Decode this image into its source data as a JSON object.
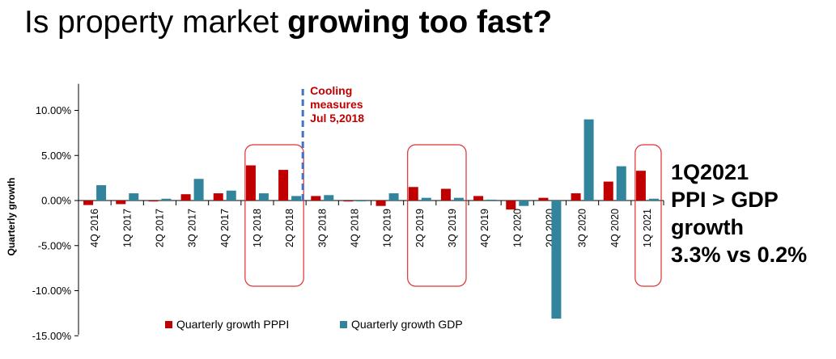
{
  "title": {
    "part1": "Is property market ",
    "part2": "growing too fast?"
  },
  "side_note": {
    "line1": "1Q2021",
    "line2": "PPI > GDP",
    "line3": "growth",
    "line4": "3.3% vs 0.2%"
  },
  "colors": {
    "pppi": "#c00000",
    "gdp": "#31849b",
    "highlight_box": "#e03030",
    "annotation_line": "#4472c4",
    "annotation_text": "#c00000"
  },
  "chart_data": {
    "type": "bar",
    "title": "",
    "xlabel": "",
    "ylabel": "Quarterly growth",
    "ylim": [
      -0.15,
      0.125
    ],
    "yticks": [
      0.1,
      0.05,
      0.0,
      -0.05,
      -0.1,
      -0.15
    ],
    "ytick_labels": [
      "10.00%",
      "5.00%",
      "0.00%",
      "-5.00%",
      "-10.00%",
      "-15.00%"
    ],
    "categories": [
      "4Q 2016",
      "1Q 2017",
      "2Q 2017",
      "3Q 2017",
      "4Q 2017",
      "1Q 2018",
      "2Q 2018",
      "3Q 2018",
      "4Q 2018",
      "1Q 2019",
      "2Q 2019",
      "3Q 2019",
      "4Q 2019",
      "1Q 2020",
      "2Q 2020",
      "3Q 2020",
      "4Q 2020",
      "1Q 2021"
    ],
    "series": [
      {
        "name": "Quarterly growth PPPI",
        "color": "#c00000",
        "values": [
          -0.005,
          -0.004,
          -0.001,
          0.007,
          0.008,
          0.039,
          0.034,
          0.005,
          -0.001,
          -0.006,
          0.015,
          0.013,
          0.005,
          -0.01,
          0.003,
          0.008,
          0.021,
          0.033
        ]
      },
      {
        "name": "Quarterly growth GDP",
        "color": "#31849b",
        "values": [
          0.017,
          0.008,
          0.002,
          0.024,
          0.011,
          0.008,
          0.005,
          0.006,
          -0.001,
          0.008,
          0.003,
          0.003,
          0.001,
          -0.006,
          -0.131,
          0.09,
          0.038,
          0.002
        ]
      }
    ],
    "highlight_groups": [
      [
        5,
        6
      ],
      [
        10,
        11
      ],
      [
        17,
        17
      ]
    ],
    "annotation": {
      "after_category": 6,
      "lines": [
        "Cooling",
        "measures",
        "Jul 5,2018"
      ]
    },
    "legend_position": "bottom",
    "grid": false
  }
}
